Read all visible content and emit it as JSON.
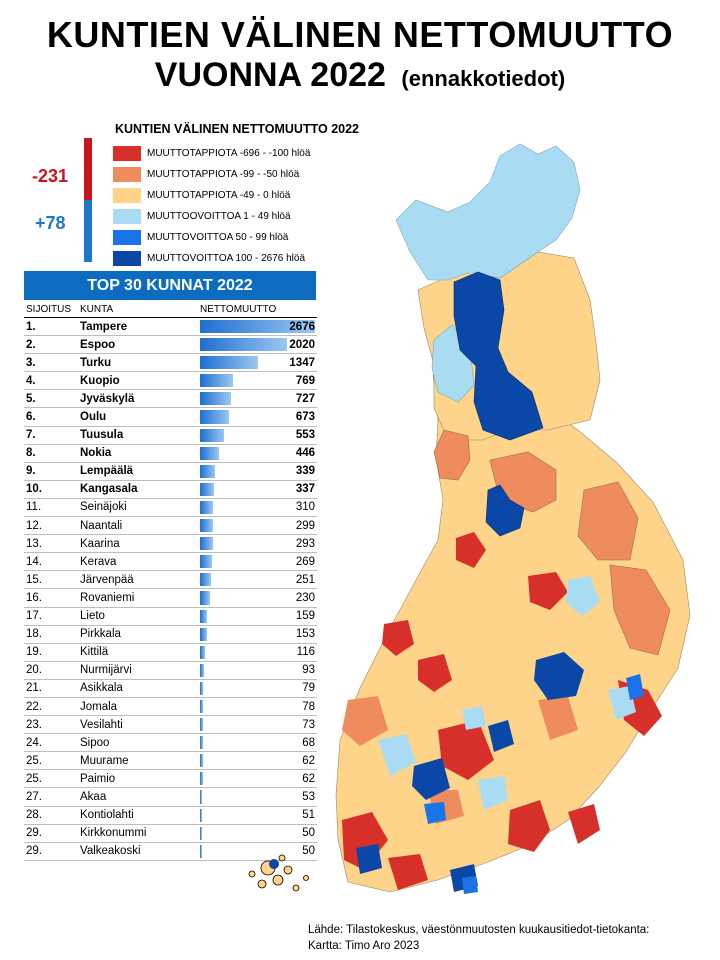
{
  "title": {
    "line1": "KUNTIEN VÄLINEN NETTOMUUTTO",
    "line2": "VUONNA 2022",
    "line2_sub": "(ennakkotiedot)"
  },
  "legend": {
    "title": "KUNTIEN VÄLINEN NETTOMUUTTO 2022",
    "items": [
      {
        "label": "MUUTTOTAPPIOTA -696 - -100 hlöä",
        "color": "#d7302a"
      },
      {
        "label": "MUUTTOTAPPIOTA -99 - -50 hlöä",
        "color": "#ef8c5e"
      },
      {
        "label": "MUUTTOTAPPIOTA -49 - 0 hlöä",
        "color": "#fdd48a"
      },
      {
        "label": "MUUTTOOVOITTOA 1 - 49 hlöä",
        "color": "#a9dcf2"
      },
      {
        "label": "MUUTTOVOITTOA 50 - 99 hlöä",
        "color": "#1a73e8"
      },
      {
        "label": "MUUTTOVOITTOA 100 - 2676 hlöä",
        "color": "#0a47a6"
      }
    ]
  },
  "summary": {
    "negative": "-231",
    "positive": "+78"
  },
  "top30": {
    "header": "TOP 30 KUNNAT 2022",
    "columns": [
      "SIJOITUS",
      "KUNTA",
      "NETTOMUUTTO"
    ],
    "max": 2676,
    "rows": [
      {
        "rank": "1.",
        "name": "Tampere",
        "value": 2676
      },
      {
        "rank": "2.",
        "name": "Espoo",
        "value": 2020
      },
      {
        "rank": "3.",
        "name": "Turku",
        "value": 1347
      },
      {
        "rank": "4.",
        "name": "Kuopio",
        "value": 769
      },
      {
        "rank": "5.",
        "name": "Jyväskylä",
        "value": 727
      },
      {
        "rank": "6.",
        "name": "Oulu",
        "value": 673
      },
      {
        "rank": "7.",
        "name": "Tuusula",
        "value": 553
      },
      {
        "rank": "8.",
        "name": "Nokia",
        "value": 446
      },
      {
        "rank": "9.",
        "name": "Lempäälä",
        "value": 339
      },
      {
        "rank": "10.",
        "name": "Kangasala",
        "value": 337
      },
      {
        "rank": "11.",
        "name": "Seinäjoki",
        "value": 310
      },
      {
        "rank": "12.",
        "name": "Naantali",
        "value": 299
      },
      {
        "rank": "13.",
        "name": "Kaarina",
        "value": 293
      },
      {
        "rank": "14.",
        "name": "Kerava",
        "value": 269
      },
      {
        "rank": "15.",
        "name": "Järvenpää",
        "value": 251
      },
      {
        "rank": "16.",
        "name": "Rovaniemi",
        "value": 230
      },
      {
        "rank": "17.",
        "name": "Lieto",
        "value": 159
      },
      {
        "rank": "18.",
        "name": "Pirkkala",
        "value": 153
      },
      {
        "rank": "19.",
        "name": "Kittilä",
        "value": 116
      },
      {
        "rank": "20.",
        "name": "Nurmijärvi",
        "value": 93
      },
      {
        "rank": "21.",
        "name": "Asikkala",
        "value": 79
      },
      {
        "rank": "22.",
        "name": "Jomala",
        "value": 78
      },
      {
        "rank": "23.",
        "name": "Vesilahti",
        "value": 73
      },
      {
        "rank": "24.",
        "name": "Sipoo",
        "value": 68
      },
      {
        "rank": "25.",
        "name": "Muurame",
        "value": 62
      },
      {
        "rank": "25.",
        "name": "Paimio",
        "value": 62
      },
      {
        "rank": "27.",
        "name": "Akaa",
        "value": 53
      },
      {
        "rank": "28.",
        "name": "Kontiolahti",
        "value": 51
      },
      {
        "rank": "29.",
        "name": "Kirkkonummi",
        "value": 50
      },
      {
        "rank": "29.",
        "name": "Valkeakoski",
        "value": 50
      }
    ]
  },
  "source": {
    "line1": "Lähde: Tilastokeskus, väestönmuutosten kuukausitiedot-tietokanta:",
    "line2": "Kartta: Timo Aro 2023"
  }
}
